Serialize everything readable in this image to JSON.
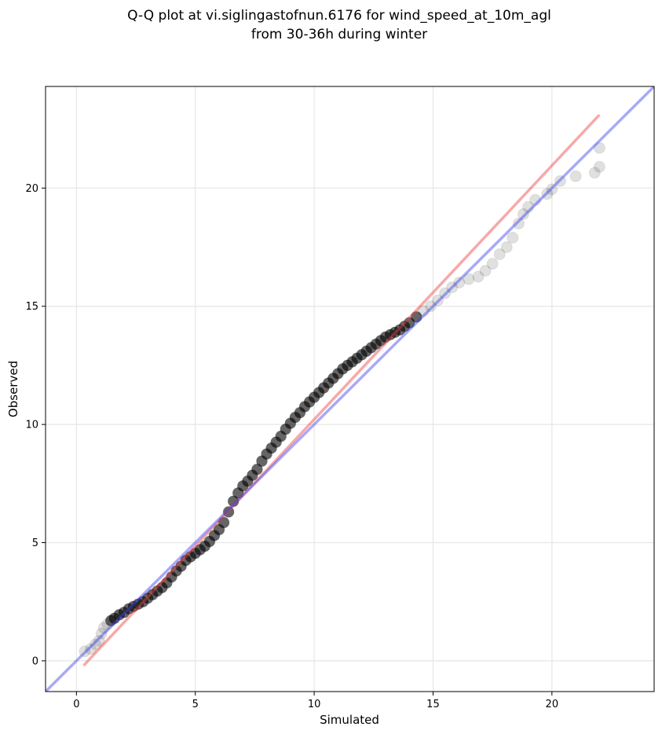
{
  "chart_data": {
    "type": "scatter",
    "title_line1": "Q-Q plot at vi.siglingastofnun.6176 for wind_speed_at_10m_agl",
    "title_line2": "from 30-36h during winter",
    "xlabel": "Simulated",
    "ylabel": "Observed",
    "xlim": [
      -1.3,
      24.3
    ],
    "ylim": [
      -1.3,
      24.3
    ],
    "xticks": [
      0,
      5,
      10,
      15,
      20
    ],
    "yticks": [
      0,
      5,
      10,
      15,
      20
    ],
    "xtick_labels": [
      "0",
      "5",
      "10",
      "15",
      "20"
    ],
    "ytick_labels": [
      "0",
      "5",
      "10",
      "15",
      "20"
    ],
    "grid": true,
    "point_color": "#000000",
    "identity_line": {
      "color": "#4040ee",
      "from": [
        -1.3,
        -1.3
      ],
      "to": [
        24.3,
        24.3
      ]
    },
    "fit_line": {
      "color": "#ee4040",
      "from": [
        0.3,
        -0.2
      ],
      "to": [
        22.0,
        23.1
      ]
    },
    "quantile_points": [
      [
        0.35,
        0.4
      ],
      [
        0.6,
        0.5
      ],
      [
        0.8,
        0.7
      ],
      [
        0.95,
        0.85
      ],
      [
        1.05,
        1.15
      ],
      [
        1.15,
        1.4
      ],
      [
        1.3,
        1.55
      ],
      [
        1.45,
        1.7
      ],
      [
        1.6,
        1.8
      ],
      [
        1.8,
        1.95
      ],
      [
        2.0,
        2.05
      ],
      [
        2.2,
        2.2
      ],
      [
        2.4,
        2.3
      ],
      [
        2.6,
        2.4
      ],
      [
        2.8,
        2.5
      ],
      [
        3.0,
        2.65
      ],
      [
        3.2,
        2.8
      ],
      [
        3.4,
        2.95
      ],
      [
        3.6,
        3.1
      ],
      [
        3.8,
        3.3
      ],
      [
        4.0,
        3.55
      ],
      [
        4.2,
        3.8
      ],
      [
        4.4,
        4.0
      ],
      [
        4.6,
        4.25
      ],
      [
        4.8,
        4.4
      ],
      [
        5.0,
        4.55
      ],
      [
        5.2,
        4.7
      ],
      [
        5.4,
        4.85
      ],
      [
        5.6,
        5.05
      ],
      [
        5.8,
        5.3
      ],
      [
        6.0,
        5.55
      ],
      [
        6.2,
        5.85
      ],
      [
        6.4,
        6.3
      ],
      [
        6.6,
        6.75
      ],
      [
        6.8,
        7.1
      ],
      [
        7.0,
        7.4
      ],
      [
        7.2,
        7.6
      ],
      [
        7.4,
        7.85
      ],
      [
        7.6,
        8.1
      ],
      [
        7.8,
        8.45
      ],
      [
        8.0,
        8.75
      ],
      [
        8.2,
        9.0
      ],
      [
        8.4,
        9.25
      ],
      [
        8.6,
        9.5
      ],
      [
        8.8,
        9.8
      ],
      [
        9.0,
        10.05
      ],
      [
        9.2,
        10.3
      ],
      [
        9.4,
        10.5
      ],
      [
        9.6,
        10.75
      ],
      [
        9.8,
        10.95
      ],
      [
        10.0,
        11.15
      ],
      [
        10.2,
        11.35
      ],
      [
        10.4,
        11.55
      ],
      [
        10.6,
        11.75
      ],
      [
        10.8,
        11.95
      ],
      [
        11.0,
        12.15
      ],
      [
        11.2,
        12.35
      ],
      [
        11.4,
        12.5
      ],
      [
        11.6,
        12.65
      ],
      [
        11.8,
        12.8
      ],
      [
        12.0,
        12.95
      ],
      [
        12.2,
        13.1
      ],
      [
        12.4,
        13.25
      ],
      [
        12.6,
        13.4
      ],
      [
        12.8,
        13.55
      ],
      [
        13.0,
        13.7
      ],
      [
        13.2,
        13.8
      ],
      [
        13.4,
        13.9
      ],
      [
        13.6,
        14.0
      ],
      [
        13.8,
        14.15
      ],
      [
        14.0,
        14.3
      ],
      [
        14.3,
        14.55
      ],
      [
        14.6,
        14.8
      ],
      [
        14.9,
        15.0
      ],
      [
        15.2,
        15.25
      ],
      [
        15.5,
        15.55
      ],
      [
        15.8,
        15.8
      ],
      [
        16.1,
        16.0
      ],
      [
        16.5,
        16.15
      ],
      [
        16.9,
        16.25
      ],
      [
        17.2,
        16.5
      ],
      [
        17.5,
        16.8
      ],
      [
        17.8,
        17.2
      ],
      [
        18.1,
        17.5
      ],
      [
        18.35,
        17.9
      ],
      [
        18.6,
        18.5
      ],
      [
        18.8,
        18.9
      ],
      [
        19.0,
        19.2
      ],
      [
        19.3,
        19.5
      ],
      [
        19.8,
        19.75
      ],
      [
        20.0,
        19.95
      ],
      [
        20.35,
        20.3
      ],
      [
        21.0,
        20.5
      ],
      [
        21.8,
        20.65
      ],
      [
        22.0,
        20.9
      ],
      [
        22.0,
        21.7
      ]
    ]
  }
}
